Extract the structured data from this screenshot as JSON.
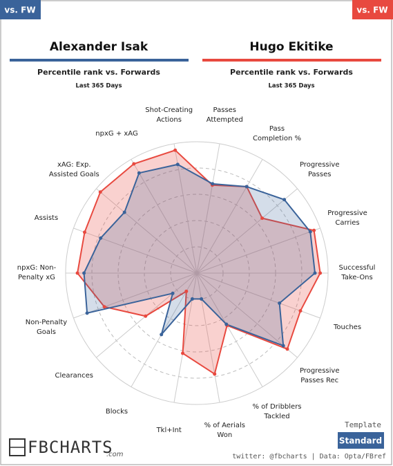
{
  "badges": {
    "left": "vs. FW",
    "right": "vs. FW"
  },
  "chart_data": {
    "type": "radar",
    "categories": [
      "Shot-Creating\nActions",
      "Passes\nAttempted",
      "Pass\nCompletion %",
      "Progressive\nPasses",
      "Progressive\nCarries",
      "Successful\nTake-Ons",
      "Touches",
      "Progressive\nPasses Rec",
      "% of Dribblers\nTackled",
      "% of Aerials\nWon",
      "Tkl+Int",
      "Blocks",
      "Clearances",
      "Non-Penalty\nGoals",
      "npxG: Non-\nPenalty xG",
      "Assists",
      "xAG: Exp.\nAssisted Goals",
      "npxG + xAG"
    ],
    "rlim": [
      0,
      100
    ],
    "rticks": [
      20,
      40,
      60,
      80,
      100
    ],
    "series": [
      {
        "name": "Alexander Isak",
        "color": "#3a639a",
        "subtitle": "Percentile rank vs. Forwards",
        "period": "Last 365 Days",
        "values": [
          84,
          69,
          76,
          87,
          92,
          90,
          67,
          86,
          45,
          20,
          20,
          54,
          24,
          89,
          86,
          78,
          72,
          88
        ]
      },
      {
        "name": "Hugo Ekitike",
        "color": "#e8493f",
        "subtitle": "Percentile rank vs. Forwards",
        "period": "Last 365 Days",
        "values": [
          95,
          68,
          76,
          65,
          95,
          94,
          84,
          90,
          46,
          78,
          62,
          16,
          51,
          75,
          91,
          91,
          96,
          96
        ]
      }
    ]
  },
  "footer": {
    "logo": "FBCHARTS",
    "domain": ".com",
    "template_label": "Template",
    "template": "Standard",
    "credit": "twitter: @fbcharts | Data: Opta/FBref"
  }
}
